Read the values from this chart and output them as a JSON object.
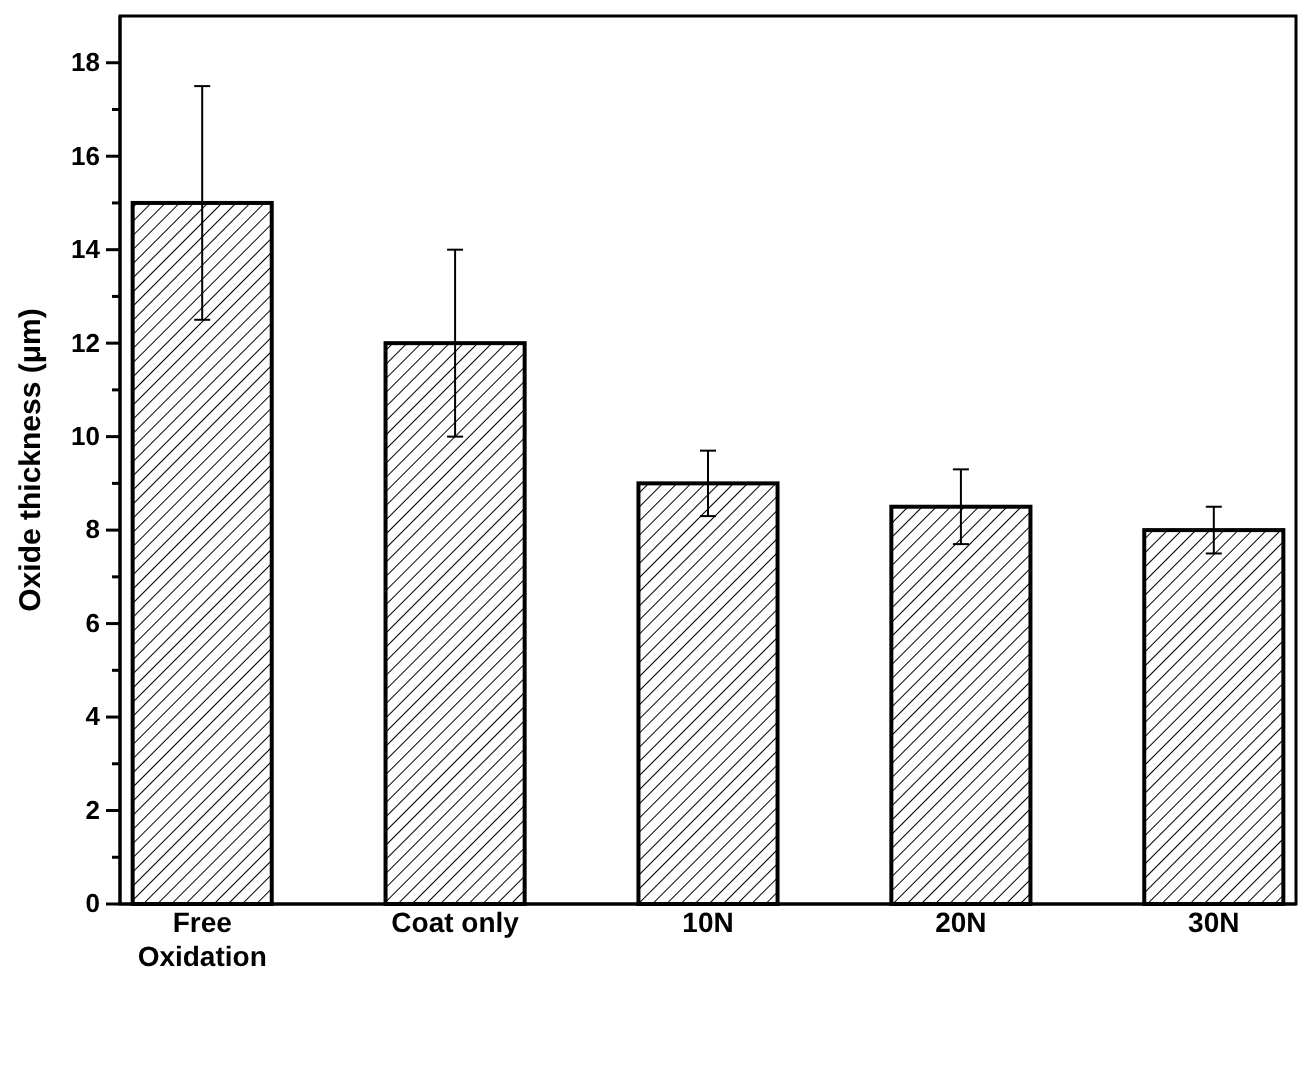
{
  "chart_data": {
    "type": "bar",
    "ylabel": "Oxide thickness (μm)",
    "categories": [
      "Free Oxidation",
      "Coat only",
      "10N",
      "20N",
      "30N"
    ],
    "values": [
      15,
      12,
      9,
      8.5,
      8
    ],
    "errors": [
      2.5,
      2,
      0.7,
      0.8,
      0.5
    ],
    "color": "#000000",
    "ylim": [
      0,
      19
    ],
    "yticks": [
      0,
      {
        "value": 1,
        "label": null
      },
      2,
      {
        "value": 3,
        "label": null
      },
      4,
      {
        "value": 5,
        "label": null
      },
      6,
      {
        "value": 7,
        "label": null
      },
      8,
      {
        "value": 9,
        "label": null
      },
      10,
      {
        "value": 11,
        "label": null
      },
      12,
      {
        "value": 13,
        "label": null
      },
      14,
      {
        "value": 15,
        "label": null
      },
      16,
      {
        "value": 17,
        "label": null
      },
      18
    ],
    "grid": false
  }
}
